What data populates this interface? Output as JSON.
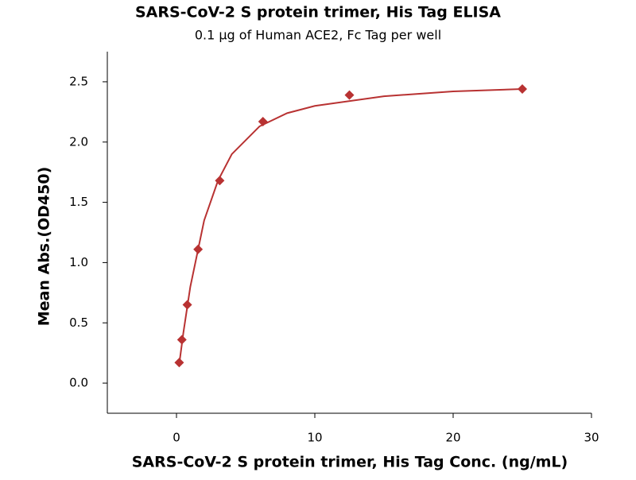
{
  "chart_data": {
    "type": "scatter",
    "title": "SARS-CoV-2 S protein trimer, His Tag ELISA",
    "subtitle": "0.1 µg of Human ACE2, Fc Tag per well",
    "x_label": "SARS-CoV-2 S protein trimer, His Tag Conc. (ng/mL)",
    "y_label": "Mean Abs.(OD450)",
    "xlim": [
      -5,
      30
    ],
    "ylim": [
      -0.25,
      2.75
    ],
    "xticks": [
      0,
      10,
      20,
      30
    ],
    "yticks": [
      {
        "value": 0,
        "label": "0.0"
      },
      0.5,
      {
        "value": 1,
        "label": "1.0"
      },
      1.5,
      {
        "value": 2,
        "label": "2.0"
      },
      2.5
    ],
    "series": [
      {
        "type": "scatter",
        "color": "#b83232",
        "x": [
          0.195,
          0.39,
          0.78,
          1.56,
          3.125,
          6.25,
          12.5,
          25
        ],
        "values": [
          0.17,
          0.36,
          0.65,
          1.11,
          1.68,
          2.17,
          2.39,
          2.44
        ]
      },
      {
        "type": "line",
        "color": "#b83232",
        "x": [
          0.2,
          0.5,
          1,
          2,
          3,
          4,
          6,
          8,
          10,
          15,
          20,
          25
        ],
        "values": [
          0.16,
          0.42,
          0.8,
          1.35,
          1.68,
          1.9,
          2.13,
          2.24,
          2.3,
          2.38,
          2.42,
          2.44
        ]
      }
    ]
  }
}
